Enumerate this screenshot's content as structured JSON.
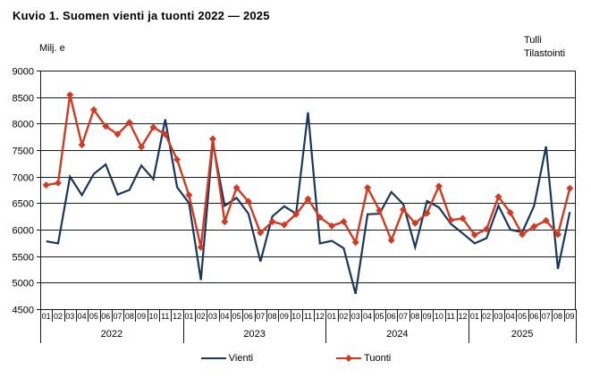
{
  "header": {
    "title": "Kuvio 1. Suomen vienti ja tuonti 2022 — 2025",
    "y_axis_unit": "Milj. e",
    "source": "Tulli\nTilastointi"
  },
  "legend": {
    "items": [
      {
        "label": "Vienti",
        "color": "#17375E"
      },
      {
        "label": "Tuonti",
        "color": "#D03A20"
      }
    ]
  },
  "chart_data": {
    "type": "line",
    "title": "Kuvio 1. Suomen vienti ja tuonti 2022 — 2025",
    "xlabel": "",
    "ylabel": "Milj. e",
    "ylim": [
      4500,
      9000
    ],
    "y_ticks": [
      9000,
      8500,
      8000,
      7500,
      7000,
      6500,
      6000,
      5500,
      5000,
      4500
    ],
    "grid": true,
    "legend_position": "bottom",
    "years": [
      {
        "label": "2022",
        "months": 12
      },
      {
        "label": "2023",
        "months": 12
      },
      {
        "label": "2024",
        "months": 12
      },
      {
        "label": "2025",
        "months": 9
      }
    ],
    "month_labels": [
      "01",
      "02",
      "03",
      "04",
      "05",
      "06",
      "07",
      "08",
      "09",
      "10",
      "11",
      "12",
      "01",
      "02",
      "03",
      "04",
      "05",
      "06",
      "07",
      "08",
      "09",
      "10",
      "11",
      "12",
      "01",
      "02",
      "03",
      "04",
      "05",
      "06",
      "07",
      "08",
      "09",
      "10",
      "11",
      "12",
      "01",
      "02",
      "03",
      "04",
      "05",
      "06",
      "07",
      "08",
      "09"
    ],
    "series": [
      {
        "name": "Vienti",
        "color": "#17375E",
        "marker": "none",
        "values": [
          5780,
          5740,
          7000,
          6650,
          7050,
          7230,
          6660,
          6750,
          7210,
          6950,
          8080,
          6800,
          6500,
          5050,
          7650,
          6450,
          6600,
          6300,
          5400,
          6250,
          6440,
          6300,
          8210,
          5740,
          5790,
          5650,
          4790,
          6290,
          6300,
          6710,
          6480,
          5670,
          6540,
          6420,
          6110,
          5930,
          5740,
          5840,
          6450,
          6000,
          5950,
          6450,
          7570,
          5260,
          6330
        ]
      },
      {
        "name": "Tuonti",
        "color": "#D03A20",
        "marker": "diamond",
        "values": [
          6840,
          6880,
          8540,
          7600,
          8260,
          7950,
          7800,
          8020,
          7560,
          7930,
          7800,
          7320,
          6650,
          5670,
          7710,
          6150,
          6790,
          6530,
          5940,
          6150,
          6090,
          6290,
          6580,
          6230,
          6070,
          6150,
          5760,
          6790,
          6360,
          5800,
          6380,
          6120,
          6310,
          6820,
          6180,
          6210,
          5900,
          6010,
          6620,
          6320,
          5910,
          6060,
          6170,
          5910,
          6780
        ]
      }
    ]
  }
}
